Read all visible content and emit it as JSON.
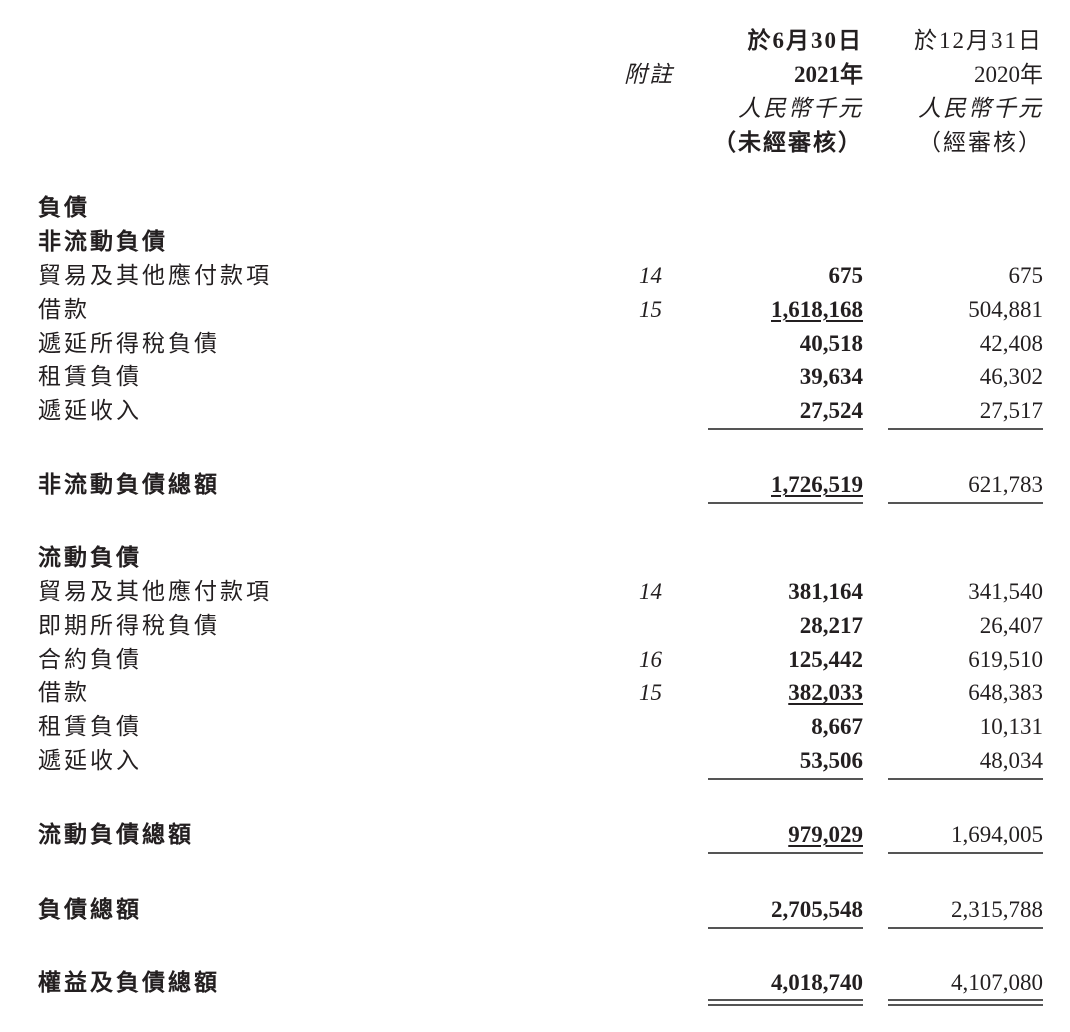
{
  "header": {
    "note_label": "附註",
    "col1": {
      "date": "於6月30日",
      "year": "2021年",
      "unit": "人民幣千元",
      "audit": "（未經審核）"
    },
    "col2": {
      "date": "於12月31日",
      "year": "2020年",
      "unit": "人民幣千元",
      "audit": "（經審核）"
    }
  },
  "sections": {
    "liabilities": "負債",
    "non_current": {
      "title": "非流動負債",
      "rows": [
        {
          "label": "貿易及其他應付款項",
          "note": "14",
          "v2021": "675",
          "v2020": "675"
        },
        {
          "label": "借款",
          "note": "15",
          "v2021": "1,618,168",
          "v2020": "504,881"
        },
        {
          "label": "遞延所得稅負債",
          "note": "",
          "v2021": "40,518",
          "v2020": "42,408"
        },
        {
          "label": "租賃負債",
          "note": "",
          "v2021": "39,634",
          "v2020": "46,302"
        },
        {
          "label": "遞延收入",
          "note": "",
          "v2021": "27,524",
          "v2020": "27,517"
        }
      ],
      "total": {
        "label": "非流動負債總額",
        "v2021": "1,726,519",
        "v2020": "621,783"
      }
    },
    "current": {
      "title": "流動負債",
      "rows": [
        {
          "label": "貿易及其他應付款項",
          "note": "14",
          "v2021": "381,164",
          "v2020": "341,540"
        },
        {
          "label": "即期所得稅負債",
          "note": "",
          "v2021": "28,217",
          "v2020": "26,407"
        },
        {
          "label": "合約負債",
          "note": "16",
          "v2021": "125,442",
          "v2020": "619,510"
        },
        {
          "label": "借款",
          "note": "15",
          "v2021": "382,033",
          "v2020": "648,383"
        },
        {
          "label": "租賃負債",
          "note": "",
          "v2021": "8,667",
          "v2020": "10,131"
        },
        {
          "label": "遞延收入",
          "note": "",
          "v2021": "53,506",
          "v2020": "48,034"
        }
      ],
      "total": {
        "label": "流動負債總額",
        "v2021": "979,029",
        "v2020": "1,694,005"
      }
    },
    "total_liabilities": {
      "label": "負債總額",
      "v2021": "2,705,548",
      "v2020": "2,315,788"
    },
    "total_equity_liabilities": {
      "label": "權益及負債總額",
      "v2021": "4,018,740",
      "v2020": "4,107,080"
    }
  }
}
